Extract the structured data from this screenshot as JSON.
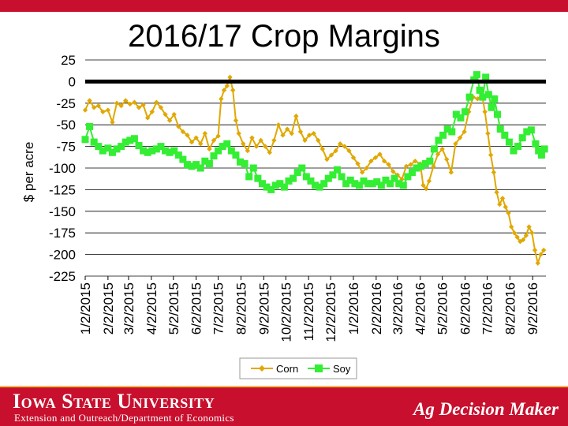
{
  "header": {
    "accent_color": "#c8102e"
  },
  "footer": {
    "university": "Iowa State University",
    "department": "Extension and Outreach/Department of Economics",
    "brand": "Ag Decision Maker",
    "background_color": "#c8102e",
    "stripe_color": "#f1be48"
  },
  "chart_data": {
    "type": "line",
    "title": "2016/17 Crop Margins",
    "ylabel": "$ per acre",
    "xlabel": "",
    "ylim": [
      -225,
      25
    ],
    "yticks": [
      25,
      0,
      -25,
      -50,
      -75,
      -100,
      -125,
      -150,
      -175,
      -200,
      -225
    ],
    "xlim": [
      "2015-01-02",
      "2016-09-20"
    ],
    "x_tick_labels": [
      "1/2/2015",
      "2/2/2015",
      "3/2/2015",
      "4/2/2015",
      "5/2/2015",
      "6/2/2015",
      "7/2/2015",
      "8/2/2015",
      "9/2/2015",
      "10/2/2015",
      "11/2/2015",
      "12/2/2015",
      "1/2/2016",
      "2/2/2016",
      "3/2/2016",
      "4/2/2016",
      "5/2/2016",
      "6/2/2016",
      "7/2/2016",
      "8/2/2016",
      "9/2/2016"
    ],
    "x_tick_dates": [
      "2015-01-02",
      "2015-02-02",
      "2015-03-02",
      "2015-04-02",
      "2015-05-02",
      "2015-06-02",
      "2015-07-02",
      "2015-08-02",
      "2015-09-02",
      "2015-10-02",
      "2015-11-02",
      "2015-12-02",
      "2016-01-02",
      "2016-02-02",
      "2016-03-02",
      "2016-04-02",
      "2016-05-02",
      "2016-06-02",
      "2016-07-02",
      "2016-08-02",
      "2016-09-02"
    ],
    "grid": true,
    "zero_line": 0,
    "legend": "bottom",
    "series": [
      {
        "name": "Corn",
        "color": "#e0a800",
        "marker": "diamond",
        "points": [
          [
            "2015-01-02",
            -33
          ],
          [
            "2015-01-08",
            -22
          ],
          [
            "2015-01-14",
            -30
          ],
          [
            "2015-01-20",
            -28
          ],
          [
            "2015-01-26",
            -35
          ],
          [
            "2015-02-02",
            -33
          ],
          [
            "2015-02-08",
            -47
          ],
          [
            "2015-02-14",
            -25
          ],
          [
            "2015-02-20",
            -28
          ],
          [
            "2015-02-26",
            -22
          ],
          [
            "2015-03-04",
            -26
          ],
          [
            "2015-03-10",
            -24
          ],
          [
            "2015-03-16",
            -30
          ],
          [
            "2015-03-22",
            -27
          ],
          [
            "2015-03-28",
            -42
          ],
          [
            "2015-04-03",
            -35
          ],
          [
            "2015-04-09",
            -24
          ],
          [
            "2015-04-15",
            -30
          ],
          [
            "2015-04-21",
            -38
          ],
          [
            "2015-04-27",
            -45
          ],
          [
            "2015-05-03",
            -38
          ],
          [
            "2015-05-09",
            -52
          ],
          [
            "2015-05-15",
            -58
          ],
          [
            "2015-05-21",
            -62
          ],
          [
            "2015-05-27",
            -70
          ],
          [
            "2015-06-02",
            -65
          ],
          [
            "2015-06-08",
            -72
          ],
          [
            "2015-06-14",
            -60
          ],
          [
            "2015-06-20",
            -78
          ],
          [
            "2015-06-26",
            -68
          ],
          [
            "2015-07-02",
            -63
          ],
          [
            "2015-07-06",
            -20
          ],
          [
            "2015-07-10",
            -10
          ],
          [
            "2015-07-14",
            -5
          ],
          [
            "2015-07-18",
            5
          ],
          [
            "2015-07-22",
            -10
          ],
          [
            "2015-07-26",
            -45
          ],
          [
            "2015-07-30",
            -60
          ],
          [
            "2015-08-05",
            -72
          ],
          [
            "2015-08-11",
            -80
          ],
          [
            "2015-08-17",
            -65
          ],
          [
            "2015-08-23",
            -75
          ],
          [
            "2015-08-29",
            -68
          ],
          [
            "2015-09-04",
            -75
          ],
          [
            "2015-09-10",
            -82
          ],
          [
            "2015-09-16",
            -68
          ],
          [
            "2015-09-22",
            -50
          ],
          [
            "2015-09-28",
            -62
          ],
          [
            "2015-10-04",
            -55
          ],
          [
            "2015-10-10",
            -60
          ],
          [
            "2015-10-16",
            -40
          ],
          [
            "2015-10-22",
            -58
          ],
          [
            "2015-10-28",
            -68
          ],
          [
            "2015-11-03",
            -62
          ],
          [
            "2015-11-09",
            -60
          ],
          [
            "2015-11-15",
            -68
          ],
          [
            "2015-11-21",
            -78
          ],
          [
            "2015-11-27",
            -90
          ],
          [
            "2015-12-03",
            -85
          ],
          [
            "2015-12-09",
            -80
          ],
          [
            "2015-12-15",
            -72
          ],
          [
            "2015-12-21",
            -75
          ],
          [
            "2015-12-27",
            -80
          ],
          [
            "2016-01-02",
            -88
          ],
          [
            "2016-01-08",
            -95
          ],
          [
            "2016-01-14",
            -105
          ],
          [
            "2016-01-20",
            -100
          ],
          [
            "2016-01-26",
            -92
          ],
          [
            "2016-02-01",
            -88
          ],
          [
            "2016-02-07",
            -84
          ],
          [
            "2016-02-13",
            -92
          ],
          [
            "2016-02-19",
            -96
          ],
          [
            "2016-02-25",
            -104
          ],
          [
            "2016-03-02",
            -108
          ],
          [
            "2016-03-08",
            -113
          ],
          [
            "2016-03-14",
            -98
          ],
          [
            "2016-03-20",
            -96
          ],
          [
            "2016-03-26",
            -92
          ],
          [
            "2016-04-02",
            -95
          ],
          [
            "2016-04-06",
            -120
          ],
          [
            "2016-04-10",
            -124
          ],
          [
            "2016-04-14",
            -115
          ],
          [
            "2016-04-20",
            -98
          ],
          [
            "2016-04-26",
            -84
          ],
          [
            "2016-05-02",
            -78
          ],
          [
            "2016-05-08",
            -90
          ],
          [
            "2016-05-14",
            -105
          ],
          [
            "2016-05-20",
            -72
          ],
          [
            "2016-05-26",
            -65
          ],
          [
            "2016-06-01",
            -58
          ],
          [
            "2016-06-07",
            -35
          ],
          [
            "2016-06-13",
            -18
          ],
          [
            "2016-06-19",
            -20
          ],
          [
            "2016-06-25",
            -15
          ],
          [
            "2016-06-29",
            -35
          ],
          [
            "2016-07-03",
            -60
          ],
          [
            "2016-07-07",
            -85
          ],
          [
            "2016-07-11",
            -105
          ],
          [
            "2016-07-15",
            -128
          ],
          [
            "2016-07-19",
            -142
          ],
          [
            "2016-07-23",
            -135
          ],
          [
            "2016-07-27",
            -145
          ],
          [
            "2016-07-31",
            -152
          ],
          [
            "2016-08-04",
            -168
          ],
          [
            "2016-08-08",
            -175
          ],
          [
            "2016-08-12",
            -180
          ],
          [
            "2016-08-16",
            -185
          ],
          [
            "2016-08-20",
            -183
          ],
          [
            "2016-08-24",
            -178
          ],
          [
            "2016-08-28",
            -168
          ],
          [
            "2016-09-01",
            -175
          ],
          [
            "2016-09-05",
            -195
          ],
          [
            "2016-09-09",
            -210
          ],
          [
            "2016-09-13",
            -200
          ],
          [
            "2016-09-17",
            -195
          ]
        ]
      },
      {
        "name": "Soy",
        "color": "#33ee33",
        "marker": "square",
        "points": [
          [
            "2015-01-02",
            -67
          ],
          [
            "2015-01-08",
            -52
          ],
          [
            "2015-01-14",
            -70
          ],
          [
            "2015-01-20",
            -75
          ],
          [
            "2015-01-26",
            -80
          ],
          [
            "2015-02-02",
            -77
          ],
          [
            "2015-02-08",
            -82
          ],
          [
            "2015-02-14",
            -78
          ],
          [
            "2015-02-20",
            -75
          ],
          [
            "2015-02-26",
            -70
          ],
          [
            "2015-03-04",
            -68
          ],
          [
            "2015-03-10",
            -66
          ],
          [
            "2015-03-16",
            -74
          ],
          [
            "2015-03-22",
            -80
          ],
          [
            "2015-03-28",
            -82
          ],
          [
            "2015-04-03",
            -80
          ],
          [
            "2015-04-09",
            -78
          ],
          [
            "2015-04-15",
            -75
          ],
          [
            "2015-04-21",
            -80
          ],
          [
            "2015-04-27",
            -82
          ],
          [
            "2015-05-03",
            -80
          ],
          [
            "2015-05-09",
            -85
          ],
          [
            "2015-05-15",
            -90
          ],
          [
            "2015-05-21",
            -96
          ],
          [
            "2015-05-27",
            -98
          ],
          [
            "2015-06-02",
            -96
          ],
          [
            "2015-06-08",
            -100
          ],
          [
            "2015-06-14",
            -92
          ],
          [
            "2015-06-20",
            -95
          ],
          [
            "2015-06-26",
            -86
          ],
          [
            "2015-07-02",
            -80
          ],
          [
            "2015-07-08",
            -75
          ],
          [
            "2015-07-14",
            -72
          ],
          [
            "2015-07-20",
            -80
          ],
          [
            "2015-07-26",
            -85
          ],
          [
            "2015-08-01",
            -93
          ],
          [
            "2015-08-07",
            -95
          ],
          [
            "2015-08-13",
            -110
          ],
          [
            "2015-08-19",
            -100
          ],
          [
            "2015-08-25",
            -112
          ],
          [
            "2015-08-31",
            -118
          ],
          [
            "2015-09-06",
            -122
          ],
          [
            "2015-09-12",
            -125
          ],
          [
            "2015-09-18",
            -120
          ],
          [
            "2015-09-24",
            -118
          ],
          [
            "2015-09-30",
            -122
          ],
          [
            "2015-10-06",
            -115
          ],
          [
            "2015-10-12",
            -112
          ],
          [
            "2015-10-18",
            -105
          ],
          [
            "2015-10-24",
            -100
          ],
          [
            "2015-10-30",
            -110
          ],
          [
            "2015-11-05",
            -115
          ],
          [
            "2015-11-11",
            -120
          ],
          [
            "2015-11-17",
            -122
          ],
          [
            "2015-11-23",
            -118
          ],
          [
            "2015-11-29",
            -112
          ],
          [
            "2015-12-05",
            -108
          ],
          [
            "2015-12-11",
            -102
          ],
          [
            "2015-12-17",
            -110
          ],
          [
            "2015-12-23",
            -118
          ],
          [
            "2015-12-29",
            -114
          ],
          [
            "2016-01-04",
            -118
          ],
          [
            "2016-01-10",
            -120
          ],
          [
            "2016-01-16",
            -115
          ],
          [
            "2016-01-22",
            -118
          ],
          [
            "2016-01-28",
            -118
          ],
          [
            "2016-02-03",
            -116
          ],
          [
            "2016-02-09",
            -120
          ],
          [
            "2016-02-15",
            -114
          ],
          [
            "2016-02-21",
            -118
          ],
          [
            "2016-02-27",
            -112
          ],
          [
            "2016-03-04",
            -118
          ],
          [
            "2016-03-10",
            -120
          ],
          [
            "2016-03-16",
            -110
          ],
          [
            "2016-03-22",
            -105
          ],
          [
            "2016-03-28",
            -100
          ],
          [
            "2016-04-03",
            -98
          ],
          [
            "2016-04-09",
            -95
          ],
          [
            "2016-04-15",
            -92
          ],
          [
            "2016-04-21",
            -78
          ],
          [
            "2016-04-27",
            -68
          ],
          [
            "2016-05-03",
            -62
          ],
          [
            "2016-05-09",
            -55
          ],
          [
            "2016-05-15",
            -58
          ],
          [
            "2016-05-21",
            -38
          ],
          [
            "2016-05-27",
            -42
          ],
          [
            "2016-06-02",
            -35
          ],
          [
            "2016-06-08",
            -18
          ],
          [
            "2016-06-14",
            2
          ],
          [
            "2016-06-18",
            8
          ],
          [
            "2016-06-22",
            -10
          ],
          [
            "2016-06-26",
            -18
          ],
          [
            "2016-06-30",
            5
          ],
          [
            "2016-07-04",
            -15
          ],
          [
            "2016-07-08",
            -30
          ],
          [
            "2016-07-12",
            -20
          ],
          [
            "2016-07-16",
            -38
          ],
          [
            "2016-07-20",
            -55
          ],
          [
            "2016-07-26",
            -62
          ],
          [
            "2016-08-01",
            -70
          ],
          [
            "2016-08-07",
            -80
          ],
          [
            "2016-08-13",
            -75
          ],
          [
            "2016-08-19",
            -65
          ],
          [
            "2016-08-25",
            -58
          ],
          [
            "2016-08-31",
            -56
          ],
          [
            "2016-09-06",
            -72
          ],
          [
            "2016-09-10",
            -80
          ],
          [
            "2016-09-14",
            -85
          ],
          [
            "2016-09-18",
            -78
          ]
        ]
      }
    ]
  }
}
